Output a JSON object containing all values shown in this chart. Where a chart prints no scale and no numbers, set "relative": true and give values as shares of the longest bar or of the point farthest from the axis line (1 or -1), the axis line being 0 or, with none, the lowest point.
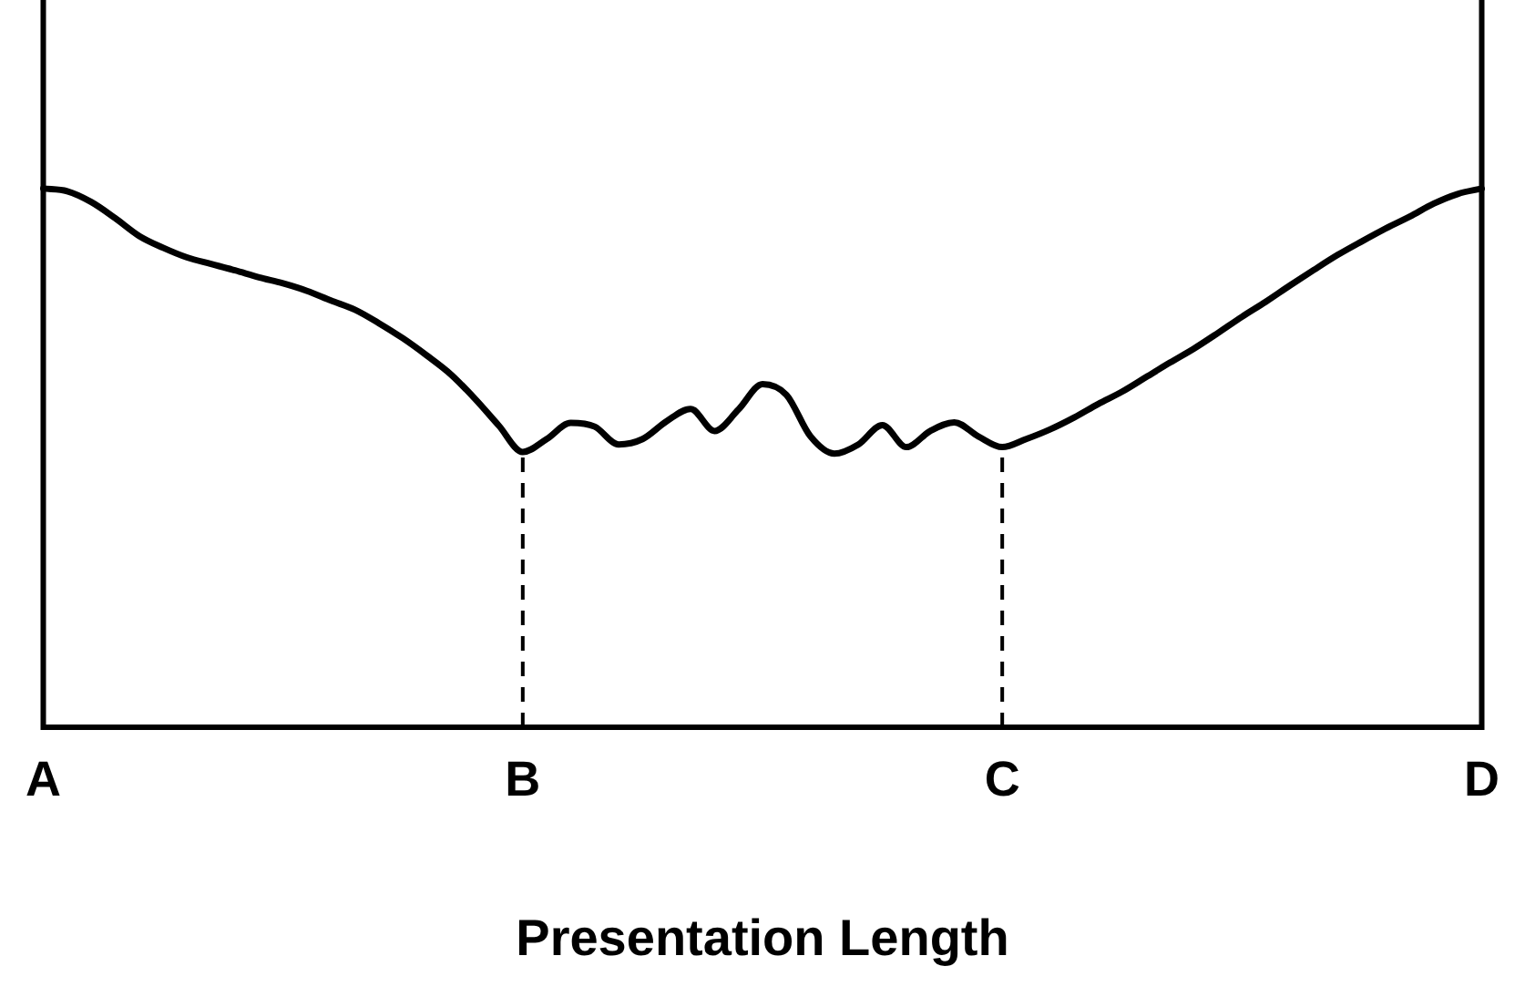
{
  "chart_data": {
    "type": "line",
    "relative": true,
    "xlabel": "Presentation Length",
    "categories": [
      "A",
      null,
      null,
      null,
      null,
      null,
      null,
      null,
      null,
      null,
      null,
      null,
      null,
      null,
      null,
      null,
      null,
      null,
      null,
      null,
      "B",
      null,
      null,
      null,
      null,
      null,
      null,
      null,
      null,
      null,
      null,
      null,
      null,
      null,
      null,
      null,
      null,
      null,
      null,
      null,
      "C",
      null,
      null,
      null,
      null,
      null,
      null,
      null,
      null,
      null,
      null,
      null,
      null,
      null,
      null,
      null,
      null,
      null,
      null,
      null,
      "D"
    ],
    "series": [
      {
        "color": "#000000",
        "values": [
          1,
          0.995,
          0.975,
          0.945,
          0.912,
          0.89,
          0.872,
          0.86,
          0.848,
          0.835,
          0.824,
          0.81,
          0.792,
          0.775,
          0.75,
          0.722,
          0.69,
          0.655,
          0.61,
          0.56,
          0.511,
          0.535,
          0.565,
          0.558,
          0.525,
          0.535,
          0.568,
          0.591,
          0.55,
          0.59,
          0.637,
          0.617,
          0.54,
          0.508,
          0.525,
          0.561,
          0.52,
          0.55,
          0.566,
          0.54,
          0.52,
          0.535,
          0.553,
          0.575,
          0.6,
          0.623,
          0.65,
          0.677,
          0.703,
          0.732,
          0.762,
          0.79,
          0.82,
          0.849,
          0.877,
          0.902,
          0.926,
          0.948,
          0.972,
          0.99,
          1
        ]
      }
    ],
    "ref_lines": [
      {
        "axis": "x",
        "value": "B",
        "line_style": "dashed"
      },
      {
        "axis": "x",
        "value": "C",
        "line_style": "dashed"
      }
    ],
    "grid": false,
    "legend": false,
    "marker": "none",
    "line_style": "solid"
  }
}
